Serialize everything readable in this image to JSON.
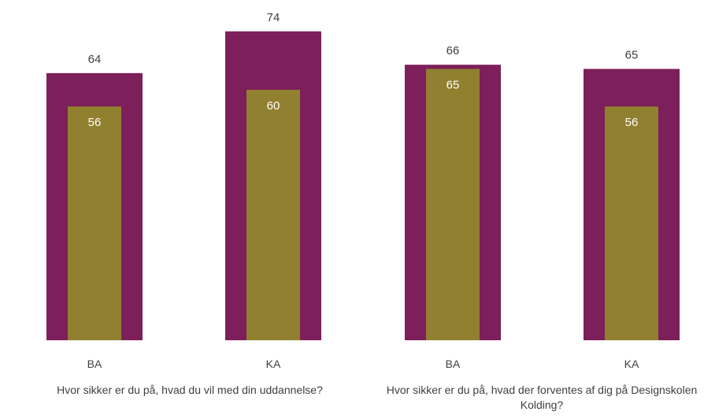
{
  "chart_data": {
    "type": "bar",
    "groups": [
      {
        "label": "Hvor sikker er du på, hvad du vil med din uddannelse?",
        "categories": [
          "BA",
          "KA"
        ]
      },
      {
        "label": "Hvor sikker er du på, hvad der forventes af dig på Designskolen Kolding?",
        "categories": [
          "BA",
          "KA"
        ]
      }
    ],
    "categories": [
      "BA",
      "KA",
      "BA",
      "KA"
    ],
    "series": [
      {
        "values": [
          64,
          74,
          66,
          65
        ],
        "color": "#7d1f5a"
      },
      {
        "values": [
          56,
          60,
          65,
          56
        ],
        "color": "#908030"
      }
    ],
    "ylim": [
      0,
      80
    ],
    "grid": false,
    "legend": "none"
  }
}
